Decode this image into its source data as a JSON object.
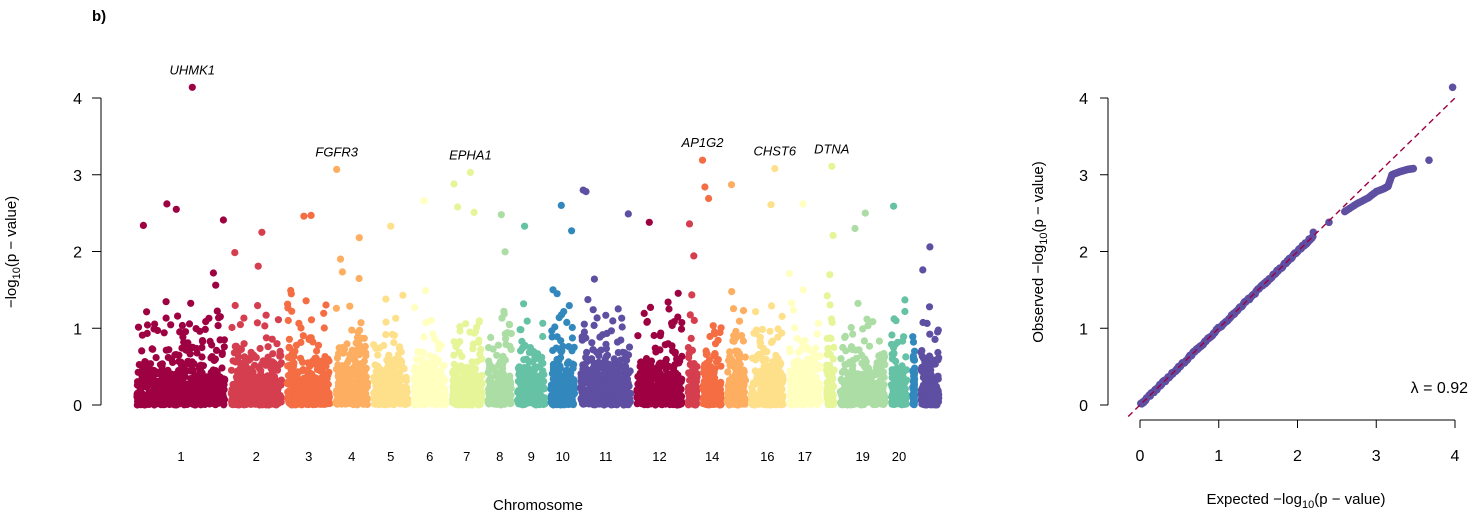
{
  "panel_label": "b)",
  "chart_data": [
    {
      "type": "scatter",
      "subtype": "manhattan",
      "xlabel": "Chromosome",
      "ylabel": "−log₁₀(p − value)",
      "ylabel_parts": {
        "pre": "−log",
        "sub": "10",
        "post": "(p − value)"
      },
      "ylim": [
        0,
        4.2
      ],
      "yticks": [
        0,
        1,
        2,
        3,
        4
      ],
      "grid": false,
      "chromosomes": [
        {
          "chr": "1",
          "label": "1",
          "color": "#9E0142",
          "rel": 1.75
        },
        {
          "chr": "2",
          "label": "2",
          "color": "#D53E4F",
          "rel": 1.05
        },
        {
          "chr": "3",
          "label": "3",
          "color": "#F46D43",
          "rel": 0.9
        },
        {
          "chr": "4",
          "label": "4",
          "color": "#FDAE61",
          "rel": 0.7
        },
        {
          "chr": "5",
          "label": "5",
          "color": "#FEE08B",
          "rel": 0.75
        },
        {
          "chr": "6",
          "label": "6",
          "color": "#FFFFBF",
          "rel": 0.7
        },
        {
          "chr": "7",
          "label": "7",
          "color": "#E6F598",
          "rel": 0.68
        },
        {
          "chr": "8",
          "label": "8",
          "color": "#ABDDA4",
          "rel": 0.55
        },
        {
          "chr": "9",
          "label": "9",
          "color": "#66C2A5",
          "rel": 0.62
        },
        {
          "chr": "10",
          "label": "10",
          "color": "#3288BD",
          "rel": 0.55
        },
        {
          "chr": "11",
          "label": "11",
          "color": "#5E4FA2",
          "rel": 1.05
        },
        {
          "chr": "12",
          "label": "12",
          "color": "#9E0142",
          "rel": 0.95
        },
        {
          "chr": "13",
          "label": "",
          "color": "#D53E4F",
          "rel": 0.28
        },
        {
          "chr": "14",
          "label": "14",
          "color": "#F46D43",
          "rel": 0.45
        },
        {
          "chr": "15",
          "label": "",
          "color": "#FDAE61",
          "rel": 0.45
        },
        {
          "chr": "16",
          "label": "16",
          "color": "#FEE08B",
          "rel": 0.7
        },
        {
          "chr": "17",
          "label": "17",
          "color": "#FFFFBF",
          "rel": 0.7
        },
        {
          "chr": "18",
          "label": "",
          "color": "#E6F598",
          "rel": 0.25
        },
        {
          "chr": "19",
          "label": "19",
          "color": "#ABDDA4",
          "rel": 0.95
        },
        {
          "chr": "20",
          "label": "20",
          "color": "#66C2A5",
          "rel": 0.4
        },
        {
          "chr": "21",
          "label": "",
          "color": "#3288BD",
          "rel": 0.15
        },
        {
          "chr": "22",
          "label": "",
          "color": "#5E4FA2",
          "rel": 0.45
        }
      ],
      "top_hits": [
        {
          "gene": "UHMK1",
          "chr": "1",
          "pos": 0.62,
          "y": 4.14
        },
        {
          "gene": "FGFR3",
          "chr": "4",
          "pos": 0.1,
          "y": 3.07
        },
        {
          "gene": "EPHA1",
          "chr": "7",
          "pos": 0.6,
          "y": 3.03
        },
        {
          "gene": "AP1G2",
          "chr": "14",
          "pos": 0.1,
          "y": 3.19
        },
        {
          "gene": "CHST6",
          "chr": "16",
          "pos": 0.7,
          "y": 3.08
        },
        {
          "gene": "DTNA",
          "chr": "18",
          "pos": 0.6,
          "y": 3.11
        }
      ],
      "notable_points": [
        {
          "chr": "1",
          "pos": 0.35,
          "y": 2.62
        },
        {
          "chr": "1",
          "pos": 0.45,
          "y": 2.55
        },
        {
          "chr": "1",
          "pos": 0.1,
          "y": 2.34
        },
        {
          "chr": "1",
          "pos": 0.95,
          "y": 2.41
        },
        {
          "chr": "2",
          "pos": 0.6,
          "y": 2.25
        },
        {
          "chr": "3",
          "pos": 0.4,
          "y": 2.46
        },
        {
          "chr": "3",
          "pos": 0.55,
          "y": 2.47
        },
        {
          "chr": "4",
          "pos": 0.7,
          "y": 2.18
        },
        {
          "chr": "5",
          "pos": 0.5,
          "y": 2.33
        },
        {
          "chr": "6",
          "pos": 0.35,
          "y": 2.66
        },
        {
          "chr": "7",
          "pos": 0.15,
          "y": 2.88
        },
        {
          "chr": "7",
          "pos": 0.25,
          "y": 2.58
        },
        {
          "chr": "7",
          "pos": 0.7,
          "y": 2.51
        },
        {
          "chr": "8",
          "pos": 0.55,
          "y": 2.48
        },
        {
          "chr": "9",
          "pos": 0.3,
          "y": 2.33
        },
        {
          "chr": "10",
          "pos": 0.45,
          "y": 2.6
        },
        {
          "chr": "10",
          "pos": 0.8,
          "y": 2.27
        },
        {
          "chr": "11",
          "pos": 0.1,
          "y": 2.8
        },
        {
          "chr": "11",
          "pos": 0.15,
          "y": 2.78
        },
        {
          "chr": "11",
          "pos": 0.9,
          "y": 2.49
        },
        {
          "chr": "12",
          "pos": 0.3,
          "y": 2.38
        },
        {
          "chr": "13",
          "pos": 0.3,
          "y": 2.36
        },
        {
          "chr": "14",
          "pos": 0.2,
          "y": 2.84
        },
        {
          "chr": "14",
          "pos": 0.35,
          "y": 2.69
        },
        {
          "chr": "15",
          "pos": 0.3,
          "y": 2.87
        },
        {
          "chr": "16",
          "pos": 0.6,
          "y": 2.61
        },
        {
          "chr": "17",
          "pos": 0.45,
          "y": 2.62
        },
        {
          "chr": "18",
          "pos": 0.7,
          "y": 2.21
        },
        {
          "chr": "19",
          "pos": 0.55,
          "y": 2.5
        },
        {
          "chr": "19",
          "pos": 0.35,
          "y": 2.3
        },
        {
          "chr": "20",
          "pos": 0.25,
          "y": 2.59
        },
        {
          "chr": "22",
          "pos": 0.5,
          "y": 2.06
        }
      ]
    },
    {
      "type": "scatter",
      "subtype": "qq",
      "xlabel": "Expected −log₁₀(p − value)",
      "xlabel_parts": {
        "pre": "Expected −log",
        "sub": "10",
        "post": "(p − value)"
      },
      "ylabel": "Observed −log₁₀(p − value)",
      "ylabel_parts": {
        "pre": "Observed −log",
        "sub": "10",
        "post": "(p − value)"
      },
      "xlim": [
        0,
        4.0
      ],
      "ylim": [
        0,
        4.2
      ],
      "xticks": [
        0,
        1,
        2,
        3,
        4
      ],
      "yticks": [
        0,
        1,
        2,
        3,
        4
      ],
      "point_color": "#5E4FA2",
      "reference_line": {
        "slope": 1,
        "intercept": 0,
        "color": "#9E0142",
        "style": "dashed"
      },
      "annotation": "λ = 0.92",
      "tail_points": [
        {
          "x": 2.2,
          "y": 2.25
        },
        {
          "x": 2.4,
          "y": 2.38
        },
        {
          "x": 2.6,
          "y": 2.52
        },
        {
          "x": 2.75,
          "y": 2.62
        },
        {
          "x": 2.9,
          "y": 2.7
        },
        {
          "x": 3.0,
          "y": 2.78
        },
        {
          "x": 3.1,
          "y": 2.82
        },
        {
          "x": 3.15,
          "y": 2.85
        },
        {
          "x": 3.2,
          "y": 3.0
        },
        {
          "x": 3.3,
          "y": 3.04
        },
        {
          "x": 3.4,
          "y": 3.07
        },
        {
          "x": 3.47,
          "y": 3.08
        },
        {
          "x": 3.67,
          "y": 3.19
        },
        {
          "x": 3.97,
          "y": 4.14
        }
      ]
    }
  ]
}
